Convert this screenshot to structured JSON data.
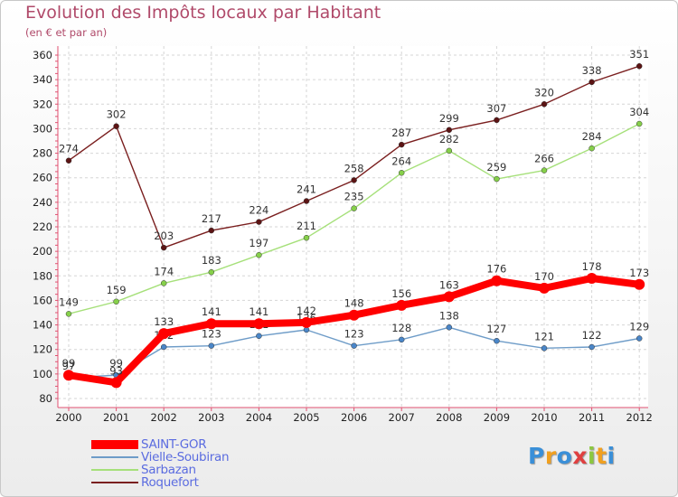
{
  "chart_data": {
    "type": "line",
    "title": "Evolution des Impôts locaux par Habitant",
    "subtitle": "(en € et par an)",
    "xlabel": "",
    "ylabel": "",
    "categories": [
      "2000",
      "2001",
      "2002",
      "2003",
      "2004",
      "2005",
      "2006",
      "2007",
      "2008",
      "2009",
      "2010",
      "2011",
      "2012"
    ],
    "ylim": [
      80,
      360
    ],
    "yticks": [
      80,
      100,
      120,
      140,
      160,
      180,
      200,
      220,
      240,
      260,
      280,
      300,
      320,
      340,
      360
    ],
    "grid": true,
    "legend_position": "bottom-left",
    "series": [
      {
        "name": "Roquefort",
        "color": "#7a1f1f",
        "marker": "#5c1414",
        "values": [
          274,
          302,
          203,
          217,
          224,
          241,
          258,
          287,
          299,
          307,
          320,
          338,
          351
        ],
        "labels": [
          "274",
          "302",
          "203",
          "217",
          "224",
          "241",
          "258",
          "287",
          "299",
          "307",
          "320",
          "338",
          "351"
        ]
      },
      {
        "name": "Sarbazan",
        "color": "#a6e07a",
        "marker": "#86d04a",
        "values": [
          149,
          159,
          174,
          183,
          197,
          211,
          235,
          264,
          282,
          259,
          266,
          284,
          304
        ],
        "labels": [
          "149",
          "159",
          "174",
          "183",
          "197",
          "211",
          "235",
          "264",
          "282",
          "259",
          "266",
          "284",
          "304"
        ]
      },
      {
        "name": "Vielle-Soubiran",
        "color": "#6e9cc8",
        "marker": "#4a86c8",
        "values": [
          97,
          99,
          122,
          123,
          131,
          136,
          123,
          128,
          138,
          127,
          121,
          122,
          129
        ],
        "labels": [
          "97",
          "99",
          "122",
          "123",
          "131",
          "136",
          "123",
          "128",
          "138",
          "127",
          "121",
          "122",
          "129"
        ]
      },
      {
        "name": "SAINT-GOR",
        "color": "#ff0000",
        "marker": "#ff0000",
        "values": [
          99,
          93,
          133,
          141,
          141,
          142,
          148,
          156,
          163,
          176,
          170,
          178,
          173
        ],
        "labels": [
          "99",
          "93",
          "133",
          "141",
          "141",
          "142",
          "148",
          "156",
          "163",
          "176",
          "170",
          "178",
          "173"
        ]
      }
    ]
  },
  "legend": [
    {
      "label": "SAINT-GOR",
      "color": "#ff0000"
    },
    {
      "label": "Vielle-Soubiran",
      "color": "#6e9cc8"
    },
    {
      "label": "Sarbazan",
      "color": "#a6e07a"
    },
    {
      "label": "Roquefort",
      "color": "#7a1f1f"
    }
  ],
  "brand": {
    "letters": [
      "P",
      "r",
      "o",
      "x",
      "i",
      "t",
      "i"
    ],
    "colors": [
      "#3a8fd8",
      "#f0a020",
      "#3a8fd8",
      "#e04040",
      "#8cc840",
      "#f0a020",
      "#3a8fd8"
    ]
  }
}
